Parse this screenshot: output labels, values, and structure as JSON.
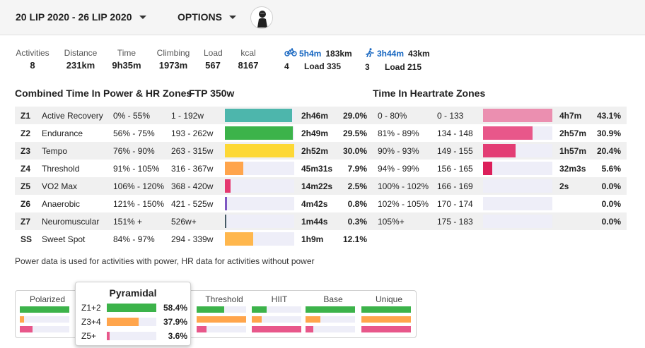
{
  "header": {
    "date_range": "20 LIP 2020 - 26 LIP 2020",
    "options_label": "OPTIONS",
    "avatar_icon": "user-avatar-icon"
  },
  "stats": [
    {
      "label": "Activities",
      "value": "8"
    },
    {
      "label": "Distance",
      "value": "231km"
    },
    {
      "label": "Time",
      "value": "9h35m"
    },
    {
      "label": "Climbing",
      "value": "1973m"
    },
    {
      "label": "Load",
      "value": "567"
    },
    {
      "label": "kcal",
      "value": "8167"
    }
  ],
  "sports": [
    {
      "icon": "bike-icon",
      "time": "5h4m",
      "distance": "183km",
      "count": "4",
      "load": "Load 335"
    },
    {
      "icon": "run-icon",
      "time": "3h44m",
      "distance": "43km",
      "count": "3",
      "load": "Load 215"
    }
  ],
  "power_section": {
    "title": "Combined Time In Power & HR Zones",
    "ftp": "FTP 350w"
  },
  "hr_section": {
    "title": "Time In Heartrate Zones"
  },
  "zones": [
    {
      "code": "Z1",
      "name": "Active Recovery",
      "pct_range": "0% - 55%",
      "watts": "1 - 192w",
      "time": "2h46m",
      "pct": "29.0%",
      "fill": 0.29,
      "color": "#4db6ac"
    },
    {
      "code": "Z2",
      "name": "Endurance",
      "pct_range": "56% - 75%",
      "watts": "193 - 262w",
      "time": "2h49m",
      "pct": "29.5%",
      "fill": 0.295,
      "color": "#3cb34a"
    },
    {
      "code": "Z3",
      "name": "Tempo",
      "pct_range": "76% - 90%",
      "watts": "263 - 315w",
      "time": "2h52m",
      "pct": "30.0%",
      "fill": 0.3,
      "color": "#fdd835"
    },
    {
      "code": "Z4",
      "name": "Threshold",
      "pct_range": "91% - 105%",
      "watts": "316 - 367w",
      "time": "45m31s",
      "pct": "7.9%",
      "fill": 0.079,
      "color": "#ffa54c"
    },
    {
      "code": "Z5",
      "name": "VO2 Max",
      "pct_range": "106% - 120%",
      "watts": "368 - 420w",
      "time": "14m22s",
      "pct": "2.5%",
      "fill": 0.025,
      "color": "#e53970"
    },
    {
      "code": "Z6",
      "name": "Anaerobic",
      "pct_range": "121% - 150%",
      "watts": "421 - 525w",
      "time": "4m42s",
      "pct": "0.8%",
      "fill": 0.008,
      "color": "#7e57c2"
    },
    {
      "code": "Z7",
      "name": "Neuromuscular",
      "pct_range": "151% +",
      "watts": "526w+",
      "time": "1m44s",
      "pct": "0.3%",
      "fill": 0.003,
      "color": "#455a64"
    },
    {
      "code": "SS",
      "name": "Sweet Spot",
      "pct_range": "84% - 97%",
      "watts": "294 - 339w",
      "time": "1h9m",
      "pct": "12.1%",
      "fill": 0.121,
      "color": "#ffb74d"
    }
  ],
  "hr_zones": [
    {
      "pct_range": "0 - 80%",
      "bpm": "0 - 133",
      "time": "4h7m",
      "pct": "43.1%",
      "fill": 0.431,
      "color": "#eb8fb0"
    },
    {
      "pct_range": "81% - 89%",
      "bpm": "134 - 148",
      "time": "2h57m",
      "pct": "30.9%",
      "fill": 0.309,
      "color": "#e8578a"
    },
    {
      "pct_range": "90% - 93%",
      "bpm": "149 - 155",
      "time": "1h57m",
      "pct": "20.4%",
      "fill": 0.204,
      "color": "#e33d74"
    },
    {
      "pct_range": "94% - 99%",
      "bpm": "156 - 165",
      "time": "32m3s",
      "pct": "5.6%",
      "fill": 0.056,
      "color": "#dc1f5a"
    },
    {
      "pct_range": "100% - 102%",
      "bpm": "166 - 169",
      "time": "2s",
      "pct": "0.0%",
      "fill": 0,
      "color": "#d81b60"
    },
    {
      "pct_range": "102% - 105%",
      "bpm": "170 - 174",
      "time": "",
      "pct": "0.0%",
      "fill": 0,
      "color": "#d81b60"
    },
    {
      "pct_range": "105%+",
      "bpm": "175 - 183",
      "time": "",
      "pct": "0.0%",
      "fill": 0,
      "color": "#d81b60"
    }
  ],
  "note": "Power data is used for activities with power, HR data for activities without power",
  "distributions": [
    {
      "label": "Polarized",
      "bars": [
        {
          "fill": 1.0,
          "color": "#3cb34a"
        },
        {
          "fill": 0.08,
          "color": "#ffa54c"
        },
        {
          "fill": 0.25,
          "color": "#e8578a"
        }
      ]
    },
    {
      "label": "Pyramidal",
      "bars": [
        {
          "fill": 1.0,
          "color": "#3cb34a"
        },
        {
          "fill": 0.6,
          "color": "#ffa54c"
        },
        {
          "fill": 0.08,
          "color": "#e8578a"
        }
      ]
    },
    {
      "label": "Threshold",
      "bars": [
        {
          "fill": 0.55,
          "color": "#3cb34a"
        },
        {
          "fill": 1.0,
          "color": "#ffa54c"
        },
        {
          "fill": 0.2,
          "color": "#e8578a"
        }
      ]
    },
    {
      "label": "HIIT",
      "bars": [
        {
          "fill": 0.3,
          "color": "#3cb34a"
        },
        {
          "fill": 0.2,
          "color": "#ffa54c"
        },
        {
          "fill": 1.0,
          "color": "#e8578a"
        }
      ]
    },
    {
      "label": "Base",
      "bars": [
        {
          "fill": 1.0,
          "color": "#3cb34a"
        },
        {
          "fill": 0.3,
          "color": "#ffa54c"
        },
        {
          "fill": 0.15,
          "color": "#e8578a"
        }
      ]
    },
    {
      "label": "Unique",
      "bars": [
        {
          "fill": 1.0,
          "color": "#3cb34a"
        },
        {
          "fill": 1.0,
          "color": "#ffa54c"
        },
        {
          "fill": 1.0,
          "color": "#e8578a"
        }
      ]
    }
  ],
  "popup": {
    "title": "Pyramidal",
    "rows": [
      {
        "label": "Z1+2",
        "value": "58.4%",
        "fill": 0.584,
        "color": "#3cb34a"
      },
      {
        "label": "Z3+4",
        "value": "37.9%",
        "fill": 0.379,
        "color": "#ffa54c"
      },
      {
        "label": "Z5+",
        "value": "3.6%",
        "fill": 0.036,
        "color": "#e8578a"
      }
    ]
  }
}
